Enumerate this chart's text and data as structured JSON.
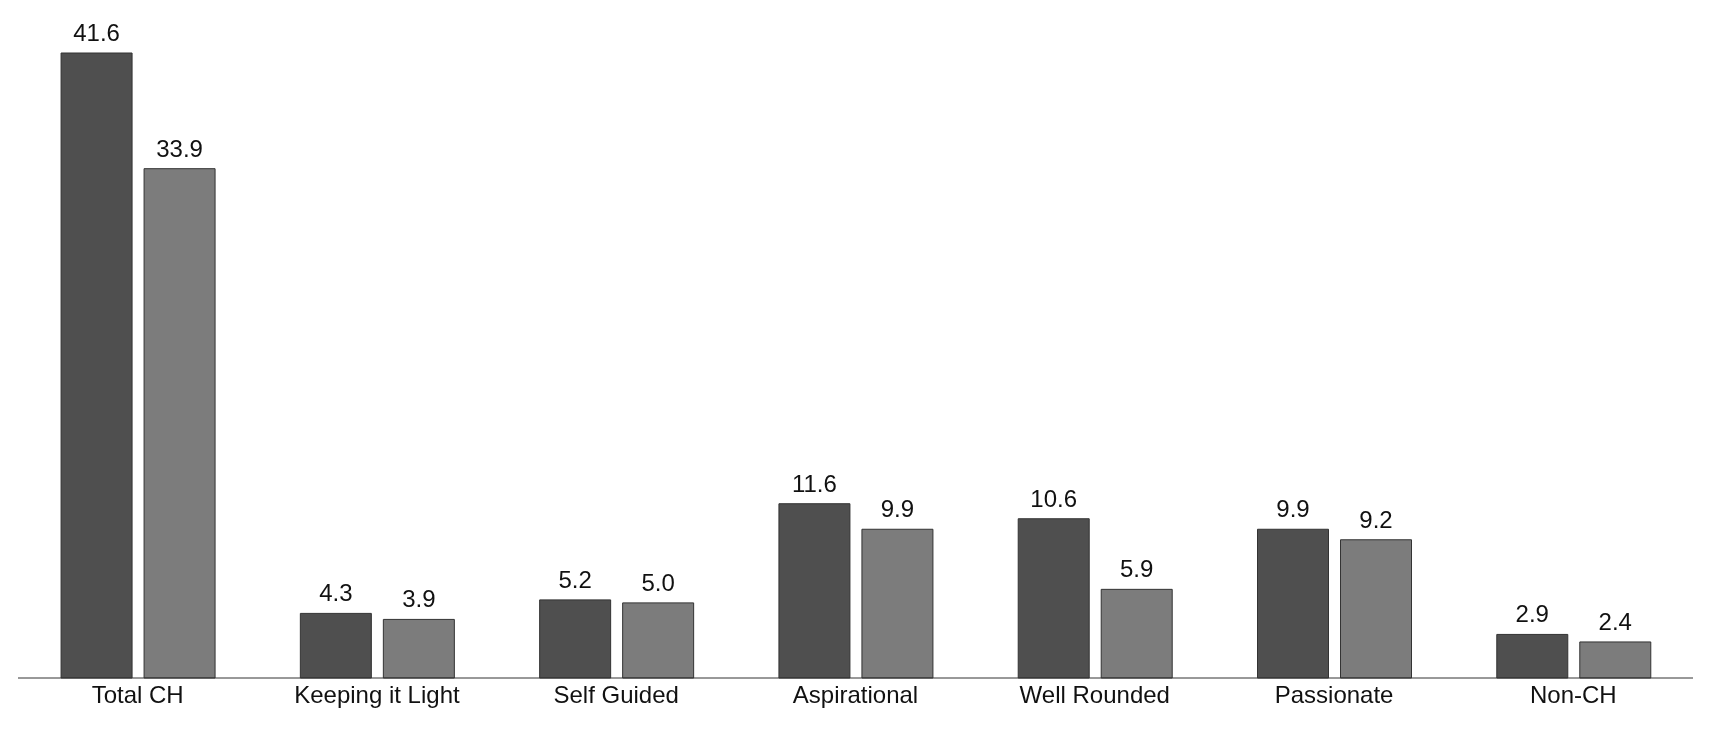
{
  "chart_data": {
    "type": "bar",
    "categories": [
      "Total CH",
      "Keeping it Light",
      "Self Guided",
      "Aspirational",
      "Well Rounded",
      "Passionate",
      "Non-CH"
    ],
    "series": [
      {
        "color": "#4f4f4f",
        "values": [
          41.6,
          4.3,
          5.2,
          11.6,
          10.6,
          9.9,
          2.9
        ],
        "value_labels": [
          "41.6",
          "4.3",
          "5.2",
          "11.6",
          "10.6",
          "9.9",
          "2.9"
        ]
      },
      {
        "color": "#7c7c7c",
        "values": [
          33.9,
          3.9,
          5.0,
          9.9,
          5.9,
          9.2,
          2.4
        ],
        "value_labels": [
          "33.9",
          "3.9",
          "5.0",
          "9.9",
          "5.9",
          "9.2",
          "2.4"
        ]
      }
    ],
    "grid": false,
    "legend": false
  }
}
